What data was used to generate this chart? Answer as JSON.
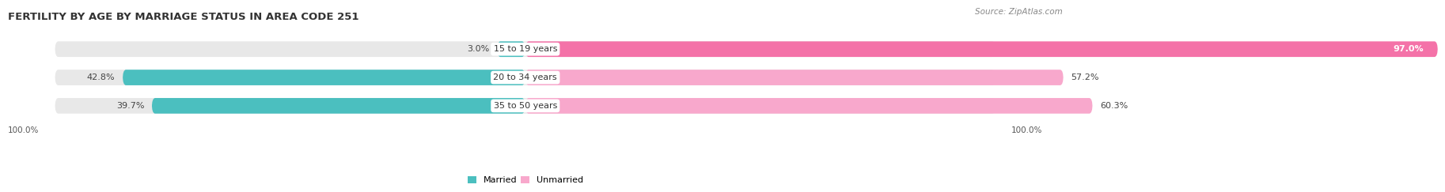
{
  "title": "FERTILITY BY AGE BY MARRIAGE STATUS IN AREA CODE 251",
  "source": "Source: ZipAtlas.com",
  "categories": [
    "15 to 19 years",
    "20 to 34 years",
    "35 to 50 years"
  ],
  "married": [
    3.0,
    42.8,
    39.7
  ],
  "unmarried": [
    97.0,
    57.2,
    60.3
  ],
  "married_color": "#4BBFBF",
  "unmarried_color": "#F472A8",
  "unmarried_color_light": "#F8A8CC",
  "bar_bg_color": "#E8E8E8",
  "bar_height": 0.55,
  "title_fontsize": 9.5,
  "label_fontsize": 8.0,
  "tick_fontsize": 7.5,
  "source_fontsize": 7.5,
  "left_axis_label": "100.0%",
  "right_axis_label": "100.0%",
  "unmarried_colors": [
    "#F472A8",
    "#F8A8CC",
    "#F8A8CC"
  ],
  "value_label_inside_threshold": 90
}
